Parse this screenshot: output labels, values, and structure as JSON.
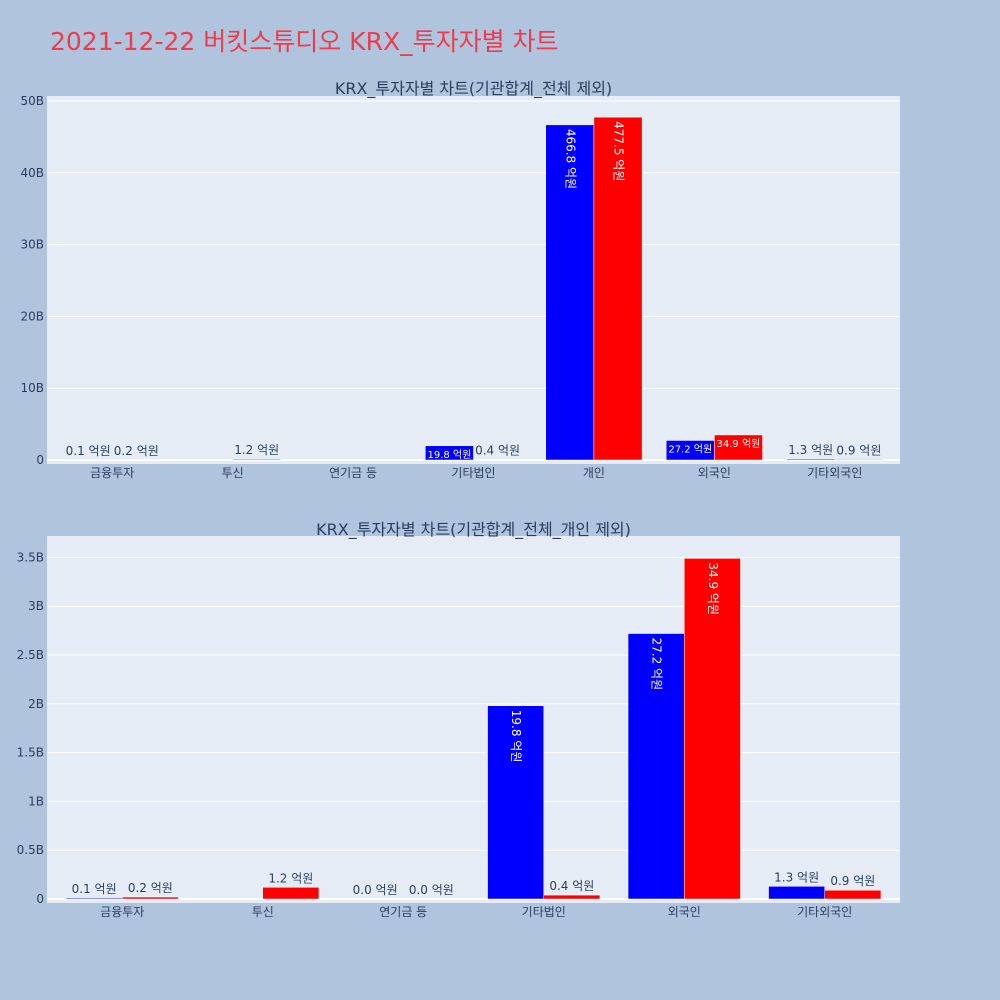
{
  "page_title": "2021-12-22 버킷스튜디오 KRX_투자자별 차트",
  "colors": {
    "background": "#b0c4de",
    "plot_bg": "#e5ecf6",
    "series1": "#0000ff",
    "series2": "#ff0000",
    "title": "#ef3b4c"
  },
  "chart_data": [
    {
      "type": "bar",
      "title": "KRX_투자자별 차트(기관합계_전체 제외)",
      "categories": [
        "금융투자",
        "투신",
        "연기금 등",
        "기타법인",
        "개인",
        "외국인",
        "기타외국인"
      ],
      "series": [
        {
          "color": "#0000ff",
          "values": [
            0.01,
            0,
            0,
            1.98,
            46.68,
            2.72,
            0.13
          ],
          "labels": [
            "0.1 억원",
            "",
            "",
            "19.8 억원",
            "466.8 억원",
            "27.2 억원",
            "1.3 억원"
          ]
        },
        {
          "color": "#ff0000",
          "values": [
            0.02,
            0.12,
            0,
            0.04,
            47.75,
            3.49,
            0.09
          ],
          "labels": [
            "0.2 억원",
            "1.2 억원",
            "",
            "0.4 억원",
            "477.5 억원",
            "34.9 억원",
            "0.9 억원"
          ]
        }
      ],
      "ylim": [
        0,
        50
      ],
      "yticks": [
        0,
        10,
        20,
        30,
        40,
        50
      ],
      "ytick_labels": [
        "0",
        "10B",
        "20B",
        "30B",
        "40B",
        "50B"
      ],
      "grid": true
    },
    {
      "type": "bar",
      "title": "KRX_투자자별 차트(기관합계_전체_개인 제외)",
      "categories": [
        "금융투자",
        "투신",
        "연기금 등",
        "기타법인",
        "외국인",
        "기타외국인"
      ],
      "series": [
        {
          "color": "#0000ff",
          "values": [
            0.01,
            0,
            0,
            1.98,
            2.72,
            0.13
          ],
          "labels": [
            "0.1 억원",
            "",
            "0.0 억원",
            "19.8 억원",
            "27.2 억원",
            "1.3 억원"
          ]
        },
        {
          "color": "#ff0000",
          "values": [
            0.02,
            0.12,
            0,
            0.04,
            3.49,
            0.09
          ],
          "labels": [
            "0.2 억원",
            "1.2 억원",
            "0.0 억원",
            "0.4 억원",
            "34.9 억원",
            "0.9 억원"
          ]
        }
      ],
      "ylim": [
        0,
        3.7
      ],
      "yticks": [
        0,
        0.5,
        1,
        1.5,
        2,
        2.5,
        3,
        3.5
      ],
      "ytick_labels": [
        "0",
        "0.5B",
        "1B",
        "1.5B",
        "2B",
        "2.5B",
        "3B",
        "3.5B"
      ],
      "grid": true
    }
  ]
}
